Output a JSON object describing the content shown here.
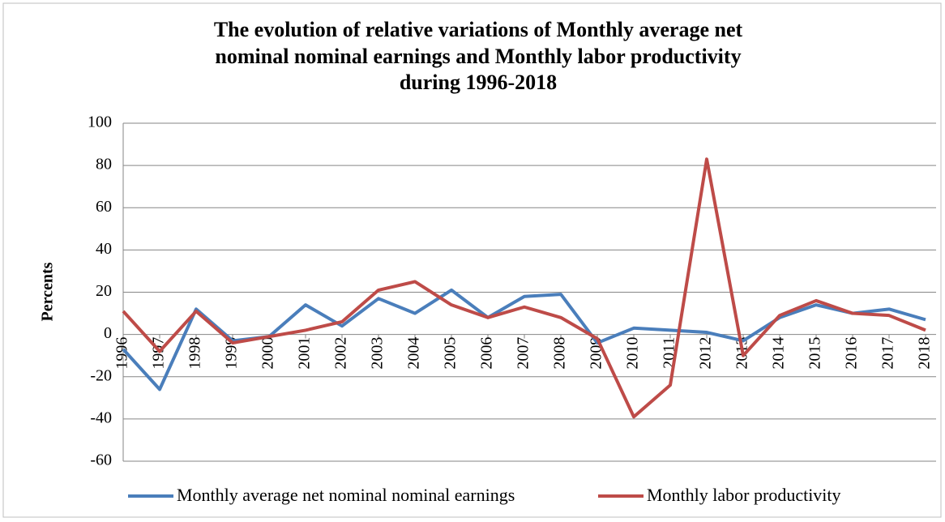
{
  "chart_data": {
    "type": "line",
    "title": [
      "The evolution of relative variations of Monthly average net",
      "nominal nominal earnings and Monthly labor productivity",
      "during 1996-2018"
    ],
    "y_label": "Percents",
    "categories": [
      "1996",
      "1997",
      "1998",
      "1999",
      "2000",
      "2001",
      "2002",
      "2003",
      "2004",
      "2005",
      "2006",
      "2007",
      "2008",
      "2009",
      "2010",
      "2011",
      "2012",
      "2013",
      "2014",
      "2015",
      "2016",
      "2017",
      "2018"
    ],
    "series": [
      {
        "name": "Monthly average net nominal nominal earnings",
        "color": "#4a7ebb",
        "values": [
          -7,
          -26,
          12,
          -3,
          -1,
          14,
          4,
          17,
          10,
          21,
          8,
          18,
          19,
          -4,
          3,
          2,
          1,
          -3,
          8,
          14,
          10,
          12,
          7
        ]
      },
      {
        "name": "Monthly labor productivity",
        "color": "#be4b48",
        "values": [
          11,
          -8,
          11,
          -4,
          -1,
          2,
          6,
          21,
          25,
          14,
          8,
          13,
          8,
          -2,
          -39,
          -24,
          83,
          -10,
          9,
          16,
          10,
          9,
          2
        ]
      }
    ],
    "ylim": [
      -60,
      100
    ],
    "yticks": [
      -60,
      -40,
      -20,
      0,
      20,
      40,
      60,
      80,
      100
    ],
    "grid": true,
    "legend": "bottom"
  }
}
